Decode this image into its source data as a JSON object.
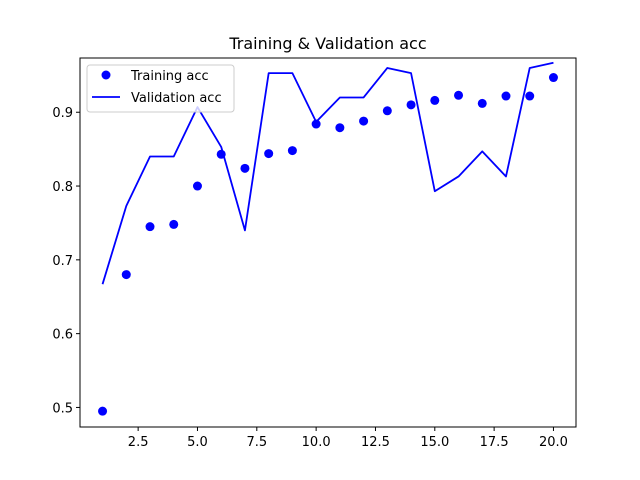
{
  "chart_data": {
    "type": "line",
    "title": "Training & Validation acc",
    "xlabel": "",
    "ylabel": "",
    "xlim": [
      0.05,
      20.95
    ],
    "ylim": [
      0.4735,
      0.9735
    ],
    "x_ticks": [
      2.5,
      5.0,
      7.5,
      10.0,
      12.5,
      15.0,
      17.5,
      20.0
    ],
    "x_tick_labels": [
      "2.5",
      "5.0",
      "7.5",
      "10.0",
      "12.5",
      "15.0",
      "17.5",
      "20.0"
    ],
    "y_ticks": [
      0.5,
      0.6,
      0.7,
      0.8,
      0.9
    ],
    "y_tick_labels": [
      "0.5",
      "0.6",
      "0.7",
      "0.8",
      "0.9"
    ],
    "grid": false,
    "legend_position": "top-left",
    "color": "#0000ff",
    "x": [
      1,
      2,
      3,
      4,
      5,
      6,
      7,
      8,
      9,
      10,
      11,
      12,
      13,
      14,
      15,
      16,
      17,
      18,
      19,
      20
    ],
    "series": [
      {
        "name": "Training acc",
        "style": "points",
        "values": [
          0.495,
          0.68,
          0.745,
          0.748,
          0.8,
          0.843,
          0.824,
          0.844,
          0.848,
          0.884,
          0.879,
          0.888,
          0.902,
          0.91,
          0.916,
          0.923,
          0.912,
          0.922,
          0.922,
          0.947
        ]
      },
      {
        "name": "Validation acc",
        "style": "line",
        "values": [
          0.667,
          0.773,
          0.84,
          0.84,
          0.907,
          0.853,
          0.74,
          0.953,
          0.953,
          0.887,
          0.92,
          0.92,
          0.96,
          0.953,
          0.793,
          0.813,
          0.847,
          0.813,
          0.96,
          0.967
        ]
      }
    ]
  }
}
